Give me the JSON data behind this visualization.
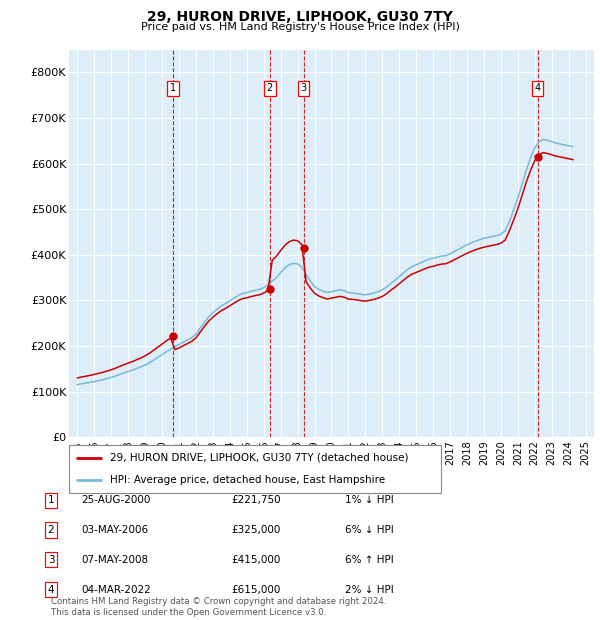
{
  "title": "29, HURON DRIVE, LIPHOOK, GU30 7TY",
  "subtitle": "Price paid vs. HM Land Registry's House Price Index (HPI)",
  "hpi_color": "#7ab8d9",
  "price_color": "#cc0000",
  "plot_bg": "#ddeef8",
  "ylim": [
    0,
    850000
  ],
  "yticks": [
    0,
    100000,
    200000,
    300000,
    400000,
    500000,
    600000,
    700000,
    800000
  ],
  "ytick_labels": [
    "£0",
    "£100K",
    "£200K",
    "£300K",
    "£400K",
    "£500K",
    "£600K",
    "£700K",
    "£800K"
  ],
  "legend_label_red": "29, HURON DRIVE, LIPHOOK, GU30 7TY (detached house)",
  "legend_label_blue": "HPI: Average price, detached house, East Hampshire",
  "transactions": [
    {
      "num": 1,
      "date": "25-AUG-2000",
      "price": 221750,
      "pct": "1%",
      "dir": "↓",
      "year": 2000.65
    },
    {
      "num": 2,
      "date": "03-MAY-2006",
      "price": 325000,
      "pct": "6%",
      "dir": "↓",
      "year": 2006.35
    },
    {
      "num": 3,
      "date": "07-MAY-2008",
      "price": 415000,
      "pct": "6%",
      "dir": "↑",
      "year": 2008.35
    },
    {
      "num": 4,
      "date": "04-MAR-2022",
      "price": 615000,
      "pct": "2%",
      "dir": "↓",
      "year": 2022.17
    }
  ],
  "footer": "Contains HM Land Registry data © Crown copyright and database right 2024.\nThis data is licensed under the Open Government Licence v3.0.",
  "hpi_years": [
    1995.0,
    1995.25,
    1995.5,
    1995.75,
    1996.0,
    1996.25,
    1996.5,
    1996.75,
    1997.0,
    1997.25,
    1997.5,
    1997.75,
    1998.0,
    1998.25,
    1998.5,
    1998.75,
    1999.0,
    1999.25,
    1999.5,
    1999.75,
    2000.0,
    2000.25,
    2000.5,
    2000.75,
    2001.0,
    2001.25,
    2001.5,
    2001.75,
    2002.0,
    2002.25,
    2002.5,
    2002.75,
    2003.0,
    2003.25,
    2003.5,
    2003.75,
    2004.0,
    2004.25,
    2004.5,
    2004.75,
    2005.0,
    2005.25,
    2005.5,
    2005.75,
    2006.0,
    2006.25,
    2006.5,
    2006.75,
    2007.0,
    2007.25,
    2007.5,
    2007.75,
    2008.0,
    2008.25,
    2008.5,
    2008.75,
    2009.0,
    2009.25,
    2009.5,
    2009.75,
    2010.0,
    2010.25,
    2010.5,
    2010.75,
    2011.0,
    2011.25,
    2011.5,
    2011.75,
    2012.0,
    2012.25,
    2012.5,
    2012.75,
    2013.0,
    2013.25,
    2013.5,
    2013.75,
    2014.0,
    2014.25,
    2014.5,
    2014.75,
    2015.0,
    2015.25,
    2015.5,
    2015.75,
    2016.0,
    2016.25,
    2016.5,
    2016.75,
    2017.0,
    2017.25,
    2017.5,
    2017.75,
    2018.0,
    2018.25,
    2018.5,
    2018.75,
    2019.0,
    2019.25,
    2019.5,
    2019.75,
    2020.0,
    2020.25,
    2020.5,
    2020.75,
    2021.0,
    2021.25,
    2021.5,
    2021.75,
    2022.0,
    2022.25,
    2022.5,
    2022.75,
    2023.0,
    2023.25,
    2023.5,
    2023.75,
    2024.0,
    2024.25
  ],
  "hpi_vals": [
    115000,
    117000,
    118500,
    120000,
    122000,
    124000,
    126000,
    128500,
    131000,
    134000,
    137500,
    141000,
    144000,
    147000,
    150500,
    154000,
    158000,
    163000,
    169000,
    175000,
    181000,
    187000,
    193000,
    199000,
    203000,
    208000,
    213000,
    218000,
    226000,
    239000,
    252000,
    264000,
    273000,
    281000,
    288000,
    293000,
    299000,
    305000,
    311000,
    315000,
    317000,
    320000,
    322000,
    324000,
    328000,
    334000,
    342000,
    350000,
    361000,
    371000,
    378000,
    381000,
    380000,
    372000,
    357000,
    342000,
    330000,
    324000,
    320000,
    317000,
    319000,
    321000,
    323000,
    321000,
    317000,
    316000,
    315000,
    313000,
    312000,
    314000,
    316000,
    319000,
    323000,
    329000,
    337000,
    344000,
    352000,
    360000,
    368000,
    374000,
    378000,
    382000,
    386000,
    390000,
    392000,
    395000,
    397000,
    398000,
    402000,
    407000,
    412000,
    417000,
    422000,
    426000,
    430000,
    433000,
    436000,
    438000,
    440000,
    442000,
    445000,
    452000,
    473000,
    498000,
    524000,
    554000,
    585000,
    612000,
    634000,
    648000,
    653000,
    651000,
    648000,
    645000,
    643000,
    641000,
    639000,
    637000
  ],
  "xlim": [
    1994.5,
    2025.5
  ],
  "xtick_years": [
    1995,
    1996,
    1997,
    1998,
    1999,
    2000,
    2001,
    2002,
    2003,
    2004,
    2005,
    2006,
    2007,
    2008,
    2009,
    2010,
    2011,
    2012,
    2013,
    2014,
    2015,
    2016,
    2017,
    2018,
    2019,
    2020,
    2021,
    2022,
    2023,
    2024,
    2025
  ]
}
